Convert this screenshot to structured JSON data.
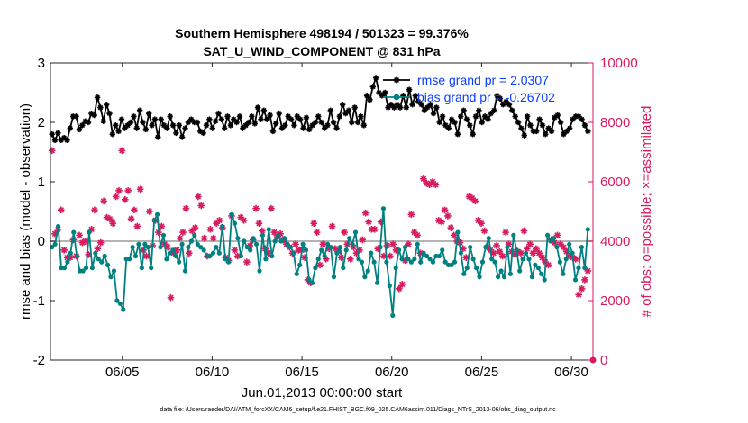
{
  "chart_data": {
    "type": "line",
    "title_line1": "Southern Hemisphere 498194 / 501323 = 99.376%",
    "title_line2": "SAT_U_WIND_COMPONENT @ 831 hPa",
    "xlabel": "Jun.01,2013 00:00:00 start",
    "ylabel": "rmse and bias (model - observation)",
    "ylabel_right": "# of obs: o=possible; ×=assimilated",
    "footnote": "data file: /Users/raeder/DAI/ATM_forcXX/CAM6_setup/f.e21.FHIST_BGC.f09_025.CAM6assim.011/Diags_NTrS_2013-06/obs_diag_output.nc",
    "xlim": [
      1,
      31.2
    ],
    "ylim": [
      -2,
      3
    ],
    "ylim_right": [
      0,
      10000
    ],
    "x_ticks": [
      5,
      10,
      15,
      20,
      25,
      30
    ],
    "x_tick_labels": [
      "06/05",
      "06/10",
      "06/15",
      "06/20",
      "06/25",
      "06/30"
    ],
    "y_ticks": [
      -2,
      -1,
      0,
      1,
      2,
      3
    ],
    "y_tick_labels": [
      "-2",
      "-1",
      "0",
      "1",
      "2",
      "3"
    ],
    "y_right_ticks": [
      0,
      2000,
      4000,
      6000,
      8000,
      10000
    ],
    "y_right_tick_labels": [
      "0",
      "2000",
      "4000",
      "6000",
      "8000",
      "10000"
    ],
    "colors": {
      "rmse": "#000000",
      "bias": "#008080",
      "obs": "#d81b60",
      "zero_line": "#b4b4b4",
      "legend_text": "#0a3cff"
    },
    "legend": [
      "rmse grand pr = 2.0307",
      "bias grand pr = -0.26702"
    ],
    "series": [
      {
        "name": "rmse",
        "axis": "left",
        "marker": "asterisk",
        "values": [
          1.8,
          1.7,
          1.82,
          1.7,
          1.74,
          1.7,
          1.9,
          2.1,
          2.1,
          1.88,
          1.95,
          2.02,
          2.0,
          2.15,
          2.12,
          2.42,
          2.25,
          2.02,
          2.3,
          2.15,
          1.8,
          1.95,
          1.85,
          2.05,
          1.9,
          1.95,
          2.0,
          2.1,
          1.9,
          2.2,
          2.0,
          1.88,
          2.15,
          1.95,
          2.05,
          1.75,
          2.05,
          1.95,
          1.9,
          2.1,
          1.95,
          1.82,
          1.95,
          1.75,
          1.9,
          2.0,
          2.05,
          2.0,
          2.0,
          1.85,
          1.82,
          1.95,
          2.05,
          1.9,
          2.02,
          2.15,
          2.05,
          1.9,
          2.1,
          1.95,
          2.05,
          2.0,
          2.1,
          1.9,
          1.95,
          2.0,
          2.1,
          1.98,
          2.25,
          2.05,
          2.2,
          2.05,
          2.12,
          1.85,
          1.98,
          2.15,
          1.9,
          1.95,
          2.1,
          2.05,
          1.95,
          2.1,
          2.05,
          1.9,
          2.08,
          1.88,
          1.95,
          2.0,
          2.1,
          2.0,
          1.9,
          1.95,
          2.2,
          2.0,
          1.9,
          2.1,
          2.3,
          2.15,
          2.2,
          2.0,
          2.25,
          2.0,
          2.1,
          1.95,
          2.45,
          2.38,
          2.6,
          2.75,
          2.5,
          2.45,
          2.5,
          2.25,
          2.3,
          2.25,
          2.3,
          2.25,
          2.45,
          2.25,
          2.55,
          2.3,
          2.45,
          2.35,
          2.3,
          2.2,
          2.25,
          2.3,
          2.15,
          2.25,
          2.0,
          2.1,
          1.95,
          1.9,
          2.05,
          2.0,
          1.8,
          2.1,
          2.2,
          2.05,
          1.95,
          1.8,
          2.1,
          2.2,
          2.0,
          2.1,
          2.05,
          2.15,
          2.2,
          2.45,
          2.4,
          2.3,
          2.35,
          2.3,
          2.2,
          2.1,
          2.0,
          1.9,
          1.78,
          2.1,
          1.95,
          1.85,
          1.85,
          2.05,
          1.95,
          1.8,
          1.9,
          1.85,
          2.08,
          2.12,
          2.0,
          1.8,
          1.85,
          1.9,
          2.05,
          2.1,
          2.1,
          2.05,
          1.95,
          1.85
        ]
      },
      {
        "name": "bias",
        "axis": "left",
        "marker": "dot",
        "values": [
          -0.1,
          -0.05,
          0.25,
          -0.45,
          -0.45,
          -0.35,
          -0.2,
          0.15,
          -0.25,
          -0.5,
          -0.5,
          -0.45,
          0.15,
          -0.45,
          -0.2,
          -0.3,
          -0.35,
          -0.25,
          -0.4,
          -0.6,
          -0.5,
          -1.0,
          -1.05,
          -1.15,
          -0.3,
          -0.3,
          -0.1,
          -0.25,
          -0.05,
          -0.45,
          -0.05,
          -0.1,
          -0.45,
          0.35,
          0.45,
          -0.1,
          0.1,
          -0.3,
          -0.2,
          -0.15,
          -0.25,
          -0.35,
          -0.05,
          -0.5,
          -0.1,
          0.0,
          0.1,
          -0.05,
          -0.1,
          -0.15,
          -0.25,
          -0.25,
          -0.2,
          -0.1,
          -0.2,
          0.25,
          -0.3,
          -0.35,
          0.45,
          0.3,
          0.05,
          -0.25,
          0.0,
          -0.1,
          -0.15,
          0.05,
          -0.05,
          -0.5,
          0.1,
          -0.3,
          0.2,
          -0.25,
          0.0,
          0.1,
          0.0,
          0.05,
          -0.05,
          -0.1,
          -0.2,
          -0.55,
          -0.4,
          -0.05,
          -0.15,
          -0.65,
          -0.7,
          -0.45,
          -0.3,
          -0.15,
          -0.25,
          -0.05,
          -0.1,
          -0.6,
          -0.2,
          -0.1,
          -0.45,
          -0.15,
          0.05,
          -0.05,
          0.15,
          -0.3,
          -0.35,
          -0.6,
          -0.5,
          -0.2,
          -0.35,
          -0.7,
          -0.1,
          0.55,
          -0.35,
          -0.75,
          -1.25,
          -0.45,
          -0.15,
          -0.3,
          -0.1,
          -0.3,
          -0.35,
          -0.3,
          -0.05,
          -0.35,
          -0.2,
          -0.25,
          -0.3,
          -0.35,
          -0.25,
          -0.25,
          -0.15,
          -0.35,
          -0.4,
          -0.4,
          -0.35,
          0.15,
          -0.2,
          -0.55,
          -0.45,
          -0.1,
          -0.3,
          -0.45,
          -0.6,
          -0.35,
          -0.1,
          0.05,
          -0.3,
          -0.35,
          -0.6,
          -0.5,
          -0.6,
          -0.1,
          -0.55,
          0.1,
          -0.15,
          -0.5,
          -0.3,
          -0.2,
          -0.3,
          -0.6,
          -0.4,
          -0.45,
          -0.55,
          -0.65,
          0.1,
          0.0,
          0.05,
          -0.1,
          -0.35,
          -0.55,
          -0.3,
          -0.05,
          -0.2,
          -0.65,
          -0.45,
          -0.1,
          -0.45,
          0.2
        ]
      },
      {
        "name": "obs_assimilated",
        "axis": "right",
        "marker": "cross",
        "values": [
          7050,
          4250,
          4400,
          5050,
          3700,
          3450,
          3450,
          4050,
          3500,
          4200,
          3950,
          4000,
          3550,
          4400,
          5050,
          3750,
          3950,
          5350,
          4800,
          4750,
          4600,
          5500,
          5700,
          7050,
          5400,
          5700,
          4750,
          5050,
          4500,
          5750,
          3700,
          3500,
          5000,
          3850,
          4700,
          4300,
          4500,
          3900,
          3800,
          2100,
          3600,
          3700,
          4100,
          4300,
          5100,
          3600,
          4350,
          4450,
          5500,
          5200,
          4100,
          3500,
          4400,
          4100,
          4600,
          4700,
          4450,
          3450,
          3350,
          4850,
          3700,
          3500,
          4800,
          4700,
          3300,
          3850,
          4050,
          5100,
          4600,
          4350,
          3750,
          3600,
          5100,
          4300,
          4150,
          4250,
          4050,
          3900,
          3800,
          3600,
          3900,
          3700,
          3700,
          3450,
          2700,
          2600,
          4600,
          4300,
          3200,
          3900,
          3400,
          3750,
          4500,
          3750,
          3650,
          3450,
          4300,
          3900,
          3400,
          3800,
          3600,
          3700,
          4050,
          4950,
          4650,
          4400,
          4400,
          3750,
          4650,
          3500,
          3850,
          3500,
          3900,
          3700,
          2400,
          2550,
          3350,
          3900,
          4900,
          4300,
          4200,
          3600,
          6100,
          5950,
          5900,
          6000,
          5900,
          4700,
          4650,
          5050,
          4850,
          4450,
          4200,
          4000,
          3950,
          3750,
          3450,
          5500,
          5450,
          5350,
          4700,
          4600,
          4350,
          3800,
          3700,
          3600,
          3850,
          3650,
          3500,
          4300,
          3900,
          3650,
          3550,
          3650,
          3600,
          4350,
          3750,
          3900,
          3600,
          3750,
          3600,
          3450,
          3300,
          3200,
          4050,
          3950,
          4200,
          3900,
          3800,
          3650,
          3500,
          3450,
          3400,
          2200,
          2400,
          2700,
          3000
        ]
      },
      {
        "name": "obs_possible",
        "axis": "right",
        "marker": "circle",
        "points": [
          [
            31.2,
            0
          ]
        ]
      }
    ]
  }
}
